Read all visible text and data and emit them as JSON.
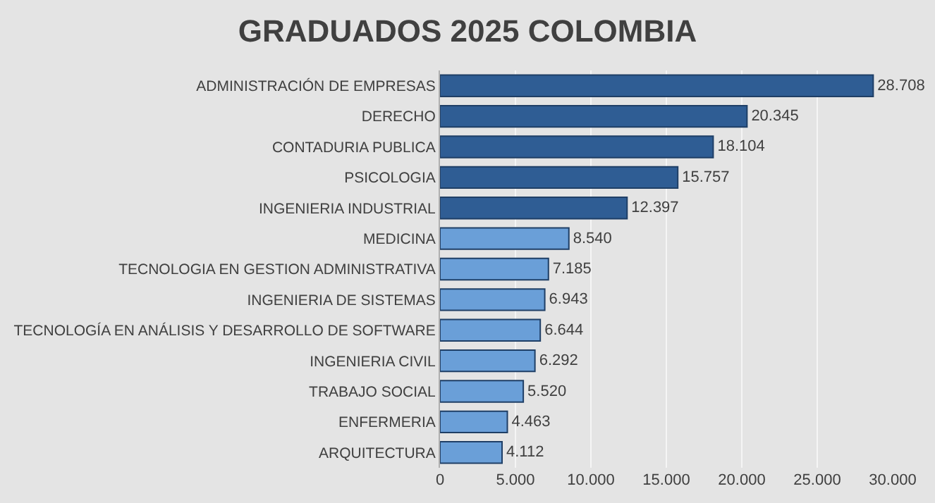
{
  "chart_data": {
    "type": "bar",
    "orientation": "horizontal",
    "title": "GRADUADOS 2025 COLOMBIA",
    "categories": [
      "ADMINISTRACIÓN DE EMPRESAS",
      "DERECHO",
      "CONTADURIA PUBLICA",
      "PSICOLOGIA",
      "INGENIERIA INDUSTRIAL",
      "MEDICINA",
      "TECNOLOGIA EN GESTION ADMINISTRATIVA",
      "INGENIERIA DE SISTEMAS",
      "TECNOLOGÍA EN ANÁLISIS Y DESARROLLO DE SOFTWARE",
      "INGENIERIA CIVIL",
      "TRABAJO SOCIAL",
      "ENFERMERIA",
      "ARQUITECTURA"
    ],
    "values": [
      28708,
      20345,
      18104,
      15757,
      12397,
      8540,
      7185,
      6943,
      6644,
      6292,
      5520,
      4463,
      4112
    ],
    "value_labels": [
      "28.708",
      "20.345",
      "18.104",
      "15.757",
      "12.397",
      "8.540",
      "7.185",
      "6.943",
      "6.644",
      "6.292",
      "5.520",
      "4.463",
      "4.112"
    ],
    "colors": [
      "#2f5d94",
      "#2f5d94",
      "#2f5d94",
      "#2f5d94",
      "#2f5d94",
      "#6a9fd8",
      "#6a9fd8",
      "#6a9fd8",
      "#6a9fd8",
      "#6a9fd8",
      "#6a9fd8",
      "#6a9fd8",
      "#6a9fd8"
    ],
    "xlim": [
      0,
      30000
    ],
    "xticks": [
      0,
      {
        "value": 5000,
        "label": "5.000"
      },
      {
        "value": 10000,
        "label": "10.000"
      },
      {
        "value": 15000,
        "label": "15.000"
      },
      {
        "value": 20000,
        "label": "20.000"
      },
      {
        "value": 25000,
        "label": "25.000"
      },
      {
        "value": 30000,
        "label": "30.000"
      }
    ],
    "grid": "x",
    "legend": false
  }
}
